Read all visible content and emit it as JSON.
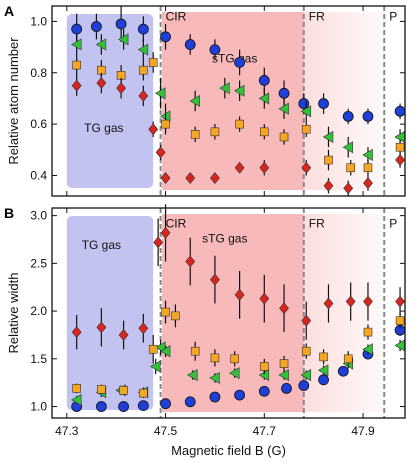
{
  "chart_data": [
    {
      "type": "scatter",
      "panel_letter": "A",
      "xlabel": "",
      "ylabel": "Relative atom number",
      "xlim": [
        47.27,
        47.985
      ],
      "ylim": [
        0.32,
        1.06
      ],
      "xticks": [
        "",
        "",
        "",
        "",
        ""
      ],
      "yticks": [
        "0.4",
        "0.6",
        "0.8",
        "1.0"
      ],
      "ytick_values": [
        0.4,
        0.6,
        0.8,
        1.0
      ],
      "regions": [
        {
          "label": "TG gas",
          "x_start": 47.3,
          "x_end": 47.475,
          "color": "#b8b8f0",
          "label_x": 47.375,
          "label_y": 0.57
        },
        {
          "label": "sTG gas",
          "x_start": 47.493,
          "x_end": 47.78,
          "color": "#f5a8a8",
          "label_x": 47.64,
          "label_y": 0.84
        },
        {
          "label": "",
          "x_start": 47.78,
          "x_end": 47.943,
          "color": "#fbd6d6",
          "label_x": null,
          "label_y": null
        }
      ],
      "vlines": [
        {
          "x": 47.49,
          "label": "CIR",
          "label_y": 1.02
        },
        {
          "x": 47.78,
          "label": "FR",
          "label_y": 1.02
        },
        {
          "x": 47.943,
          "label": "P",
          "label_y": 1.02
        }
      ],
      "series": [
        {
          "marker": "circle",
          "color": "#1f3fd6",
          "points": [
            [
              47.32,
              0.97,
              0.06
            ],
            [
              47.36,
              0.98,
              0.05
            ],
            [
              47.41,
              0.99,
              0.07
            ],
            [
              47.455,
              0.97,
              0.05
            ],
            [
              47.5,
              0.94,
              0.05
            ],
            [
              47.55,
              0.91,
              0.04
            ],
            [
              47.6,
              0.89,
              0.04
            ],
            [
              47.65,
              0.84,
              0.05
            ],
            [
              47.7,
              0.77,
              0.05
            ],
            [
              47.74,
              0.72,
              0.05
            ],
            [
              47.78,
              0.68,
              0.04
            ],
            [
              47.82,
              0.68,
              0.04
            ],
            [
              47.87,
              0.63,
              0.03
            ],
            [
              47.91,
              0.63,
              0.03
            ],
            [
              47.975,
              0.65,
              0.03
            ]
          ]
        },
        {
          "marker": "triangle",
          "color": "#33c13b",
          "points": [
            [
              47.32,
              0.91,
              0.04
            ],
            [
              47.37,
              0.91,
              0.04
            ],
            [
              47.415,
              0.93,
              0.04
            ],
            [
              47.455,
              0.89,
              0.04
            ],
            [
              47.49,
              0.72,
              0.06
            ],
            [
              47.5,
              0.63,
              0.05
            ],
            [
              47.56,
              0.69,
              0.04
            ],
            [
              47.62,
              0.74,
              0.04
            ],
            [
              47.65,
              0.73,
              0.04
            ],
            [
              47.7,
              0.7,
              0.04
            ],
            [
              47.74,
              0.66,
              0.04
            ],
            [
              47.785,
              0.65,
              0.04
            ],
            [
              47.83,
              0.55,
              0.04
            ],
            [
              47.87,
              0.51,
              0.04
            ],
            [
              47.91,
              0.48,
              0.03
            ],
            [
              47.975,
              0.55,
              0.03
            ]
          ]
        },
        {
          "marker": "square",
          "color": "#f5a623",
          "points": [
            [
              47.32,
              0.83,
              0.04
            ],
            [
              47.37,
              0.81,
              0.04
            ],
            [
              47.41,
              0.79,
              0.04
            ],
            [
              47.455,
              0.81,
              0.04
            ],
            [
              47.475,
              0.84,
              0.04
            ],
            [
              47.5,
              0.6,
              0.04
            ],
            [
              47.56,
              0.56,
              0.03
            ],
            [
              47.6,
              0.57,
              0.03
            ],
            [
              47.65,
              0.6,
              0.03
            ],
            [
              47.7,
              0.57,
              0.03
            ],
            [
              47.74,
              0.55,
              0.03
            ],
            [
              47.785,
              0.58,
              0.03
            ],
            [
              47.83,
              0.46,
              0.04
            ],
            [
              47.875,
              0.43,
              0.03
            ],
            [
              47.91,
              0.43,
              0.03
            ],
            [
              47.975,
              0.51,
              0.03
            ]
          ]
        },
        {
          "marker": "diamond",
          "color": "#d7261e",
          "points": [
            [
              47.32,
              0.75,
              0.04
            ],
            [
              47.37,
              0.76,
              0.04
            ],
            [
              47.41,
              0.74,
              0.04
            ],
            [
              47.455,
              0.71,
              0.04
            ],
            [
              47.475,
              0.58,
              0.03
            ],
            [
              47.49,
              0.49,
              0.03
            ],
            [
              47.5,
              0.39,
              0.02
            ],
            [
              47.55,
              0.39,
              0.02
            ],
            [
              47.6,
              0.39,
              0.02
            ],
            [
              47.65,
              0.43,
              0.02
            ],
            [
              47.7,
              0.43,
              0.03
            ],
            [
              47.785,
              0.43,
              0.03
            ],
            [
              47.83,
              0.36,
              0.03
            ],
            [
              47.87,
              0.35,
              0.03
            ],
            [
              47.91,
              0.37,
              0.03
            ],
            [
              47.975,
              0.46,
              0.03
            ]
          ]
        }
      ]
    },
    {
      "type": "scatter",
      "panel_letter": "B",
      "xlabel": "Magnetic field B (G)",
      "ylabel": "Relative  width",
      "xlim": [
        47.27,
        47.985
      ],
      "ylim": [
        0.88,
        3.08
      ],
      "xticks": [
        "47.3",
        "47.5",
        "47.7",
        "47.9"
      ],
      "xtick_values": [
        47.3,
        47.5,
        47.7,
        47.9
      ],
      "yticks": [
        "1.0",
        "1.5",
        "2.0",
        "2.5",
        "3.0"
      ],
      "ytick_values": [
        1.0,
        1.5,
        2.0,
        2.5,
        3.0
      ],
      "regions": [
        {
          "label": "TG gas",
          "x_start": 47.3,
          "x_end": 47.475,
          "color": "#b8b8f0",
          "label_x": 47.37,
          "label_y": 2.65
        },
        {
          "label": "sTG gas",
          "x_start": 47.493,
          "x_end": 47.78,
          "color": "#f5a8a8",
          "label_x": 47.62,
          "label_y": 2.72
        },
        {
          "label": "",
          "x_start": 47.78,
          "x_end": 47.943,
          "color": "#fbd6d6",
          "label_x": null,
          "label_y": null
        }
      ],
      "vlines": [
        {
          "x": 47.49,
          "label": "CIR",
          "label_y": 2.92
        },
        {
          "x": 47.78,
          "label": "FR",
          "label_y": 2.92
        },
        {
          "x": 47.943,
          "label": "P",
          "label_y": 2.92
        }
      ],
      "series": [
        {
          "marker": "circle",
          "color": "#1f3fd6",
          "points": [
            [
              47.32,
              1.0,
              0.03
            ],
            [
              47.37,
              1.0,
              0.03
            ],
            [
              47.415,
              1.0,
              0.03
            ],
            [
              47.455,
              1.01,
              0.03
            ],
            [
              47.5,
              1.03,
              0.03
            ],
            [
              47.55,
              1.05,
              0.03
            ],
            [
              47.6,
              1.1,
              0.03
            ],
            [
              47.65,
              1.12,
              0.03
            ],
            [
              47.7,
              1.16,
              0.04
            ],
            [
              47.745,
              1.19,
              0.04
            ],
            [
              47.78,
              1.22,
              0.05
            ],
            [
              47.82,
              1.28,
              0.04
            ],
            [
              47.86,
              1.37,
              0.05
            ],
            [
              47.91,
              1.55,
              0.05
            ],
            [
              47.975,
              1.8,
              0.06
            ]
          ]
        },
        {
          "marker": "triangle",
          "color": "#33c13b",
          "points": [
            [
              47.32,
              1.07,
              0.04
            ],
            [
              47.37,
              1.15,
              0.05
            ],
            [
              47.41,
              1.17,
              0.05
            ],
            [
              47.455,
              1.15,
              0.05
            ],
            [
              47.48,
              1.42,
              0.08
            ],
            [
              47.49,
              1.62,
              0.08
            ],
            [
              47.5,
              1.58,
              0.06
            ],
            [
              47.555,
              1.33,
              0.05
            ],
            [
              47.6,
              1.3,
              0.05
            ],
            [
              47.64,
              1.35,
              0.05
            ],
            [
              47.7,
              1.33,
              0.05
            ],
            [
              47.74,
              1.33,
              0.05
            ],
            [
              47.785,
              1.33,
              0.05
            ],
            [
              47.82,
              1.38,
              0.05
            ],
            [
              47.87,
              1.45,
              0.05
            ],
            [
              47.91,
              1.6,
              0.05
            ],
            [
              47.975,
              1.64,
              0.06
            ]
          ]
        },
        {
          "marker": "square",
          "color": "#f5a623",
          "points": [
            [
              47.32,
              1.19,
              0.05
            ],
            [
              47.37,
              1.18,
              0.05
            ],
            [
              47.415,
              1.17,
              0.04
            ],
            [
              47.455,
              1.14,
              0.05
            ],
            [
              47.475,
              1.6,
              0.15
            ],
            [
              47.5,
              1.99,
              0.12
            ],
            [
              47.52,
              1.95,
              0.12
            ],
            [
              47.56,
              1.58,
              0.1
            ],
            [
              47.6,
              1.51,
              0.09
            ],
            [
              47.64,
              1.5,
              0.08
            ],
            [
              47.7,
              1.42,
              0.08
            ],
            [
              47.74,
              1.45,
              0.08
            ],
            [
              47.785,
              1.58,
              0.08
            ],
            [
              47.82,
              1.52,
              0.08
            ],
            [
              47.87,
              1.5,
              0.08
            ],
            [
              47.91,
              1.78,
              0.08
            ],
            [
              47.975,
              1.9,
              0.08
            ]
          ]
        },
        {
          "marker": "diamond",
          "color": "#d7261e",
          "points": [
            [
              47.32,
              1.78,
              0.18
            ],
            [
              47.37,
              1.83,
              0.2
            ],
            [
              47.415,
              1.75,
              0.15
            ],
            [
              47.455,
              1.82,
              0.15
            ],
            [
              47.485,
              2.72,
              0.25
            ],
            [
              47.5,
              2.82,
              0.3
            ],
            [
              47.55,
              2.52,
              0.25
            ],
            [
              47.6,
              2.33,
              0.25
            ],
            [
              47.65,
              2.17,
              0.25
            ],
            [
              47.7,
              2.13,
              0.25
            ],
            [
              47.74,
              2.03,
              0.25
            ],
            [
              47.785,
              1.9,
              0.2
            ],
            [
              47.83,
              2.08,
              0.2
            ],
            [
              47.875,
              2.1,
              0.2
            ],
            [
              47.91,
              2.1,
              0.2
            ],
            [
              47.975,
              2.1,
              0.15
            ]
          ]
        }
      ]
    }
  ]
}
